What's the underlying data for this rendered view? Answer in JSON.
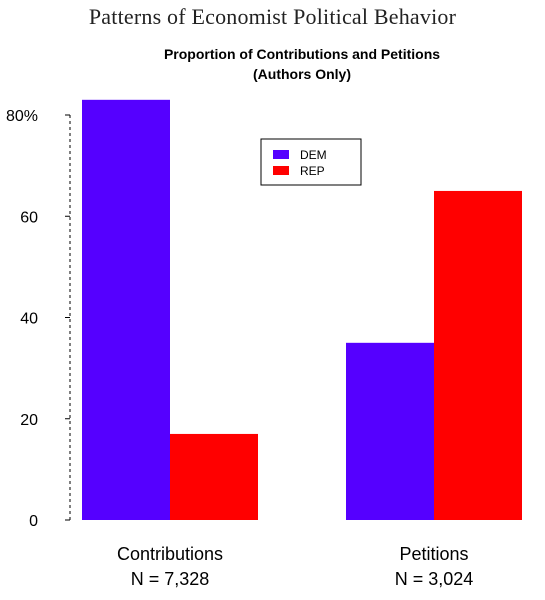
{
  "page": {
    "title": "Patterns of Economist Political Behavior"
  },
  "chart_data": {
    "type": "bar",
    "title": "Proportion of Contributions and Petitions",
    "subtitle": "(Authors Only)",
    "categories": [
      "Contributions",
      "Petitions"
    ],
    "category_sublabels": [
      "N = 7,328",
      "N = 3,024"
    ],
    "series": [
      {
        "name": "DEM",
        "color": "#5500ff",
        "values": [
          83,
          35
        ]
      },
      {
        "name": "REP",
        "color": "#ff0000",
        "values": [
          17,
          65
        ]
      }
    ],
    "ylim": [
      0,
      80
    ],
    "yticks": [
      0,
      20,
      40,
      60,
      80
    ],
    "ytick_labels": [
      "0",
      "20",
      "40",
      "60",
      "80%"
    ],
    "xlabel": "",
    "ylabel": "",
    "grid": false,
    "legend_position": "top-center"
  }
}
